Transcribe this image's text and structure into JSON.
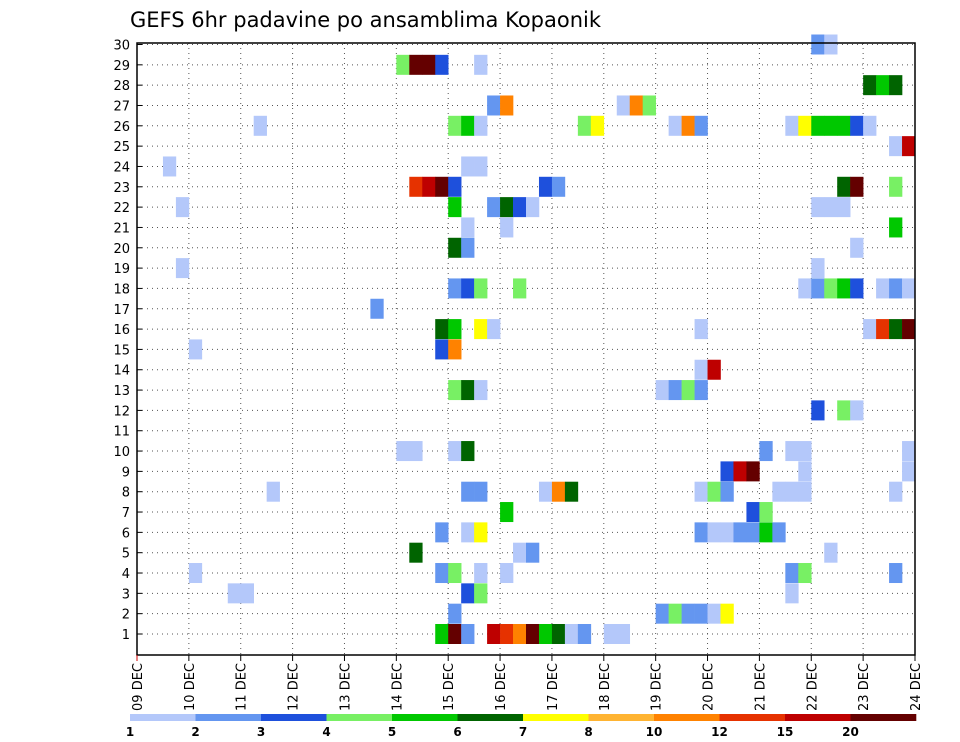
{
  "chart_data": {
    "type": "heatmap",
    "title": "GEFS 6hr padavine po ansamblima Kopaonik",
    "x_tick_labels": [
      "09 DEC",
      "10 DEC",
      "11 DEC",
      "12 DEC",
      "13 DEC",
      "14 DEC",
      "15 DEC",
      "16 DEC",
      "17 DEC",
      "18 DEC",
      "19 DEC",
      "20 DEC",
      "21 DEC",
      "22 DEC",
      "23 DEC",
      "24 DEC"
    ],
    "y_tick_labels": [
      "1",
      "2",
      "3",
      "4",
      "5",
      "6",
      "7",
      "8",
      "9",
      "10",
      "11",
      "12",
      "13",
      "14",
      "15",
      "16",
      "17",
      "18",
      "19",
      "20",
      "21",
      "22",
      "23",
      "24",
      "25",
      "26",
      "27",
      "28",
      "29",
      "30"
    ],
    "ylim": [
      1,
      30
    ],
    "x_unit": "6-hour step starting 09 DEC",
    "grid": true,
    "colorbar": {
      "labels": [
        "1",
        "2",
        "3",
        "4",
        "5",
        "6",
        "7",
        "8",
        "10",
        "12",
        "15",
        "20"
      ],
      "colors": [
        "#b4c8fa",
        "#6496f0",
        "#1e50dc",
        "#78f064",
        "#00c800",
        "#006400",
        "#ffff00",
        "#ffb432",
        "#ff8200",
        "#e63200",
        "#be0000",
        "#640000"
      ]
    },
    "cells": [
      {
        "x": 24,
        "y": 1,
        "v": 5
      },
      {
        "x": 25,
        "y": 1,
        "v": 20
      },
      {
        "x": 26,
        "y": 1,
        "v": 2
      },
      {
        "x": 28,
        "y": 1,
        "v": 15
      },
      {
        "x": 29,
        "y": 1,
        "v": 12
      },
      {
        "x": 30,
        "y": 1,
        "v": 10
      },
      {
        "x": 31,
        "y": 1,
        "v": 20
      },
      {
        "x": 32,
        "y": 1,
        "v": 5
      },
      {
        "x": 33,
        "y": 1,
        "v": 6
      },
      {
        "x": 34,
        "y": 1,
        "v": 1
      },
      {
        "x": 35,
        "y": 1,
        "v": 2
      },
      {
        "x": 37,
        "y": 1,
        "v": 1
      },
      {
        "x": 38,
        "y": 1,
        "v": 1
      },
      {
        "x": 25,
        "y": 2,
        "v": 2
      },
      {
        "x": 41,
        "y": 2,
        "v": 2
      },
      {
        "x": 42,
        "y": 2,
        "v": 4
      },
      {
        "x": 43,
        "y": 2,
        "v": 2
      },
      {
        "x": 44,
        "y": 2,
        "v": 2
      },
      {
        "x": 45,
        "y": 2,
        "v": 1
      },
      {
        "x": 46,
        "y": 2,
        "v": 7
      },
      {
        "x": 8,
        "y": 3,
        "v": 1
      },
      {
        "x": 9,
        "y": 3,
        "v": 1
      },
      {
        "x": 26,
        "y": 3,
        "v": 3
      },
      {
        "x": 27,
        "y": 3,
        "v": 4
      },
      {
        "x": 51,
        "y": 3,
        "v": 1
      },
      {
        "x": 5,
        "y": 4,
        "v": 1
      },
      {
        "x": 24,
        "y": 4,
        "v": 2
      },
      {
        "x": 25,
        "y": 4,
        "v": 4
      },
      {
        "x": 27,
        "y": 4,
        "v": 1
      },
      {
        "x": 29,
        "y": 4,
        "v": 1
      },
      {
        "x": 51,
        "y": 4,
        "v": 2
      },
      {
        "x": 52,
        "y": 4,
        "v": 4
      },
      {
        "x": 59,
        "y": 4,
        "v": 2
      },
      {
        "x": 22,
        "y": 5,
        "v": 6
      },
      {
        "x": 30,
        "y": 5,
        "v": 1
      },
      {
        "x": 31,
        "y": 5,
        "v": 2
      },
      {
        "x": 54,
        "y": 5,
        "v": 1
      },
      {
        "x": 24,
        "y": 6,
        "v": 2
      },
      {
        "x": 26,
        "y": 6,
        "v": 1
      },
      {
        "x": 27,
        "y": 6,
        "v": 7
      },
      {
        "x": 44,
        "y": 6,
        "v": 2
      },
      {
        "x": 45,
        "y": 6,
        "v": 1
      },
      {
        "x": 46,
        "y": 6,
        "v": 1
      },
      {
        "x": 47,
        "y": 6,
        "v": 2
      },
      {
        "x": 48,
        "y": 6,
        "v": 2
      },
      {
        "x": 49,
        "y": 6,
        "v": 5
      },
      {
        "x": 50,
        "y": 6,
        "v": 2
      },
      {
        "x": 29,
        "y": 7,
        "v": 5
      },
      {
        "x": 48,
        "y": 7,
        "v": 3
      },
      {
        "x": 49,
        "y": 7,
        "v": 4
      },
      {
        "x": 11,
        "y": 8,
        "v": 1
      },
      {
        "x": 26,
        "y": 8,
        "v": 2
      },
      {
        "x": 27,
        "y": 8,
        "v": 2
      },
      {
        "x": 32,
        "y": 8,
        "v": 1
      },
      {
        "x": 33,
        "y": 8,
        "v": 10
      },
      {
        "x": 34,
        "y": 8,
        "v": 6
      },
      {
        "x": 44,
        "y": 8,
        "v": 1
      },
      {
        "x": 45,
        "y": 8,
        "v": 4
      },
      {
        "x": 46,
        "y": 8,
        "v": 2
      },
      {
        "x": 50,
        "y": 8,
        "v": 1
      },
      {
        "x": 51,
        "y": 8,
        "v": 1
      },
      {
        "x": 52,
        "y": 8,
        "v": 1
      },
      {
        "x": 59,
        "y": 8,
        "v": 1
      },
      {
        "x": 46,
        "y": 9,
        "v": 3
      },
      {
        "x": 47,
        "y": 9,
        "v": 15
      },
      {
        "x": 48,
        "y": 9,
        "v": 20
      },
      {
        "x": 52,
        "y": 9,
        "v": 1
      },
      {
        "x": 60,
        "y": 9,
        "v": 1
      },
      {
        "x": 21,
        "y": 10,
        "v": 1
      },
      {
        "x": 22,
        "y": 10,
        "v": 1
      },
      {
        "x": 25,
        "y": 10,
        "v": 1
      },
      {
        "x": 26,
        "y": 10,
        "v": 6
      },
      {
        "x": 49,
        "y": 10,
        "v": 2
      },
      {
        "x": 51,
        "y": 10,
        "v": 1
      },
      {
        "x": 52,
        "y": 10,
        "v": 1
      },
      {
        "x": 60,
        "y": 10,
        "v": 1
      },
      {
        "x": 53,
        "y": 12,
        "v": 3
      },
      {
        "x": 55,
        "y": 12,
        "v": 4
      },
      {
        "x": 56,
        "y": 12,
        "v": 1
      },
      {
        "x": 25,
        "y": 13,
        "v": 4
      },
      {
        "x": 26,
        "y": 13,
        "v": 6
      },
      {
        "x": 27,
        "y": 13,
        "v": 1
      },
      {
        "x": 41,
        "y": 13,
        "v": 1
      },
      {
        "x": 42,
        "y": 13,
        "v": 2
      },
      {
        "x": 43,
        "y": 13,
        "v": 4
      },
      {
        "x": 44,
        "y": 13,
        "v": 2
      },
      {
        "x": 44,
        "y": 14,
        "v": 1
      },
      {
        "x": 45,
        "y": 14,
        "v": 15
      },
      {
        "x": 24,
        "y": 15,
        "v": 3
      },
      {
        "x": 25,
        "y": 15,
        "v": 10
      },
      {
        "x": 5,
        "y": 15,
        "v": 1
      },
      {
        "x": 24,
        "y": 16,
        "v": 6
      },
      {
        "x": 25,
        "y": 16,
        "v": 5
      },
      {
        "x": 27,
        "y": 16,
        "v": 7
      },
      {
        "x": 28,
        "y": 16,
        "v": 1
      },
      {
        "x": 44,
        "y": 16,
        "v": 1
      },
      {
        "x": 57,
        "y": 16,
        "v": 1
      },
      {
        "x": 58,
        "y": 16,
        "v": 12
      },
      {
        "x": 59,
        "y": 16,
        "v": 6
      },
      {
        "x": 60,
        "y": 16,
        "v": 20
      },
      {
        "x": 19,
        "y": 17,
        "v": 2
      },
      {
        "x": 25,
        "y": 18,
        "v": 2
      },
      {
        "x": 26,
        "y": 18,
        "v": 3
      },
      {
        "x": 27,
        "y": 18,
        "v": 4
      },
      {
        "x": 30,
        "y": 18,
        "v": 4
      },
      {
        "x": 52,
        "y": 18,
        "v": 1
      },
      {
        "x": 53,
        "y": 18,
        "v": 2
      },
      {
        "x": 54,
        "y": 18,
        "v": 4
      },
      {
        "x": 55,
        "y": 18,
        "v": 5
      },
      {
        "x": 56,
        "y": 18,
        "v": 3
      },
      {
        "x": 58,
        "y": 18,
        "v": 1
      },
      {
        "x": 59,
        "y": 18,
        "v": 2
      },
      {
        "x": 60,
        "y": 18,
        "v": 1
      },
      {
        "x": 4,
        "y": 19,
        "v": 1
      },
      {
        "x": 53,
        "y": 19,
        "v": 1
      },
      {
        "x": 25,
        "y": 20,
        "v": 6
      },
      {
        "x": 26,
        "y": 20,
        "v": 2
      },
      {
        "x": 56,
        "y": 20,
        "v": 1
      },
      {
        "x": 26,
        "y": 21,
        "v": 1
      },
      {
        "x": 29,
        "y": 21,
        "v": 1
      },
      {
        "x": 59,
        "y": 21,
        "v": 5
      },
      {
        "x": 4,
        "y": 22,
        "v": 1
      },
      {
        "x": 25,
        "y": 22,
        "v": 5
      },
      {
        "x": 28,
        "y": 22,
        "v": 2
      },
      {
        "x": 29,
        "y": 22,
        "v": 6
      },
      {
        "x": 30,
        "y": 22,
        "v": 3
      },
      {
        "x": 31,
        "y": 22,
        "v": 1
      },
      {
        "x": 53,
        "y": 22,
        "v": 1
      },
      {
        "x": 54,
        "y": 22,
        "v": 1
      },
      {
        "x": 55,
        "y": 22,
        "v": 1
      },
      {
        "x": 22,
        "y": 23,
        "v": 12
      },
      {
        "x": 23,
        "y": 23,
        "v": 15
      },
      {
        "x": 24,
        "y": 23,
        "v": 20
      },
      {
        "x": 25,
        "y": 23,
        "v": 3
      },
      {
        "x": 32,
        "y": 23,
        "v": 3
      },
      {
        "x": 33,
        "y": 23,
        "v": 2
      },
      {
        "x": 55,
        "y": 23,
        "v": 6
      },
      {
        "x": 56,
        "y": 23,
        "v": 20
      },
      {
        "x": 59,
        "y": 23,
        "v": 4
      },
      {
        "x": 3,
        "y": 24,
        "v": 1
      },
      {
        "x": 26,
        "y": 24,
        "v": 1
      },
      {
        "x": 27,
        "y": 24,
        "v": 1
      },
      {
        "x": 59,
        "y": 25,
        "v": 1
      },
      {
        "x": 60,
        "y": 25,
        "v": 15
      },
      {
        "x": 10,
        "y": 26,
        "v": 1
      },
      {
        "x": 25,
        "y": 26,
        "v": 4
      },
      {
        "x": 26,
        "y": 26,
        "v": 5
      },
      {
        "x": 27,
        "y": 26,
        "v": 1
      },
      {
        "x": 35,
        "y": 26,
        "v": 4
      },
      {
        "x": 36,
        "y": 26,
        "v": 7
      },
      {
        "x": 42,
        "y": 26,
        "v": 1
      },
      {
        "x": 43,
        "y": 26,
        "v": 10
      },
      {
        "x": 44,
        "y": 26,
        "v": 2
      },
      {
        "x": 51,
        "y": 26,
        "v": 1
      },
      {
        "x": 52,
        "y": 26,
        "v": 7
      },
      {
        "x": 53,
        "y": 26,
        "v": 5
      },
      {
        "x": 54,
        "y": 26,
        "v": 5
      },
      {
        "x": 55,
        "y": 26,
        "v": 5
      },
      {
        "x": 56,
        "y": 26,
        "v": 3
      },
      {
        "x": 57,
        "y": 26,
        "v": 1
      },
      {
        "x": 28,
        "y": 27,
        "v": 2
      },
      {
        "x": 29,
        "y": 27,
        "v": 10
      },
      {
        "x": 38,
        "y": 27,
        "v": 1
      },
      {
        "x": 39,
        "y": 27,
        "v": 10
      },
      {
        "x": 40,
        "y": 27,
        "v": 4
      },
      {
        "x": 57,
        "y": 28,
        "v": 6
      },
      {
        "x": 58,
        "y": 28,
        "v": 5
      },
      {
        "x": 59,
        "y": 28,
        "v": 6
      },
      {
        "x": 21,
        "y": 29,
        "v": 4
      },
      {
        "x": 22,
        "y": 29,
        "v": 20
      },
      {
        "x": 23,
        "y": 29,
        "v": 20
      },
      {
        "x": 24,
        "y": 29,
        "v": 3
      },
      {
        "x": 27,
        "y": 29,
        "v": 1
      },
      {
        "x": 53,
        "y": 30,
        "v": 2
      },
      {
        "x": 54,
        "y": 30,
        "v": 1
      }
    ]
  }
}
